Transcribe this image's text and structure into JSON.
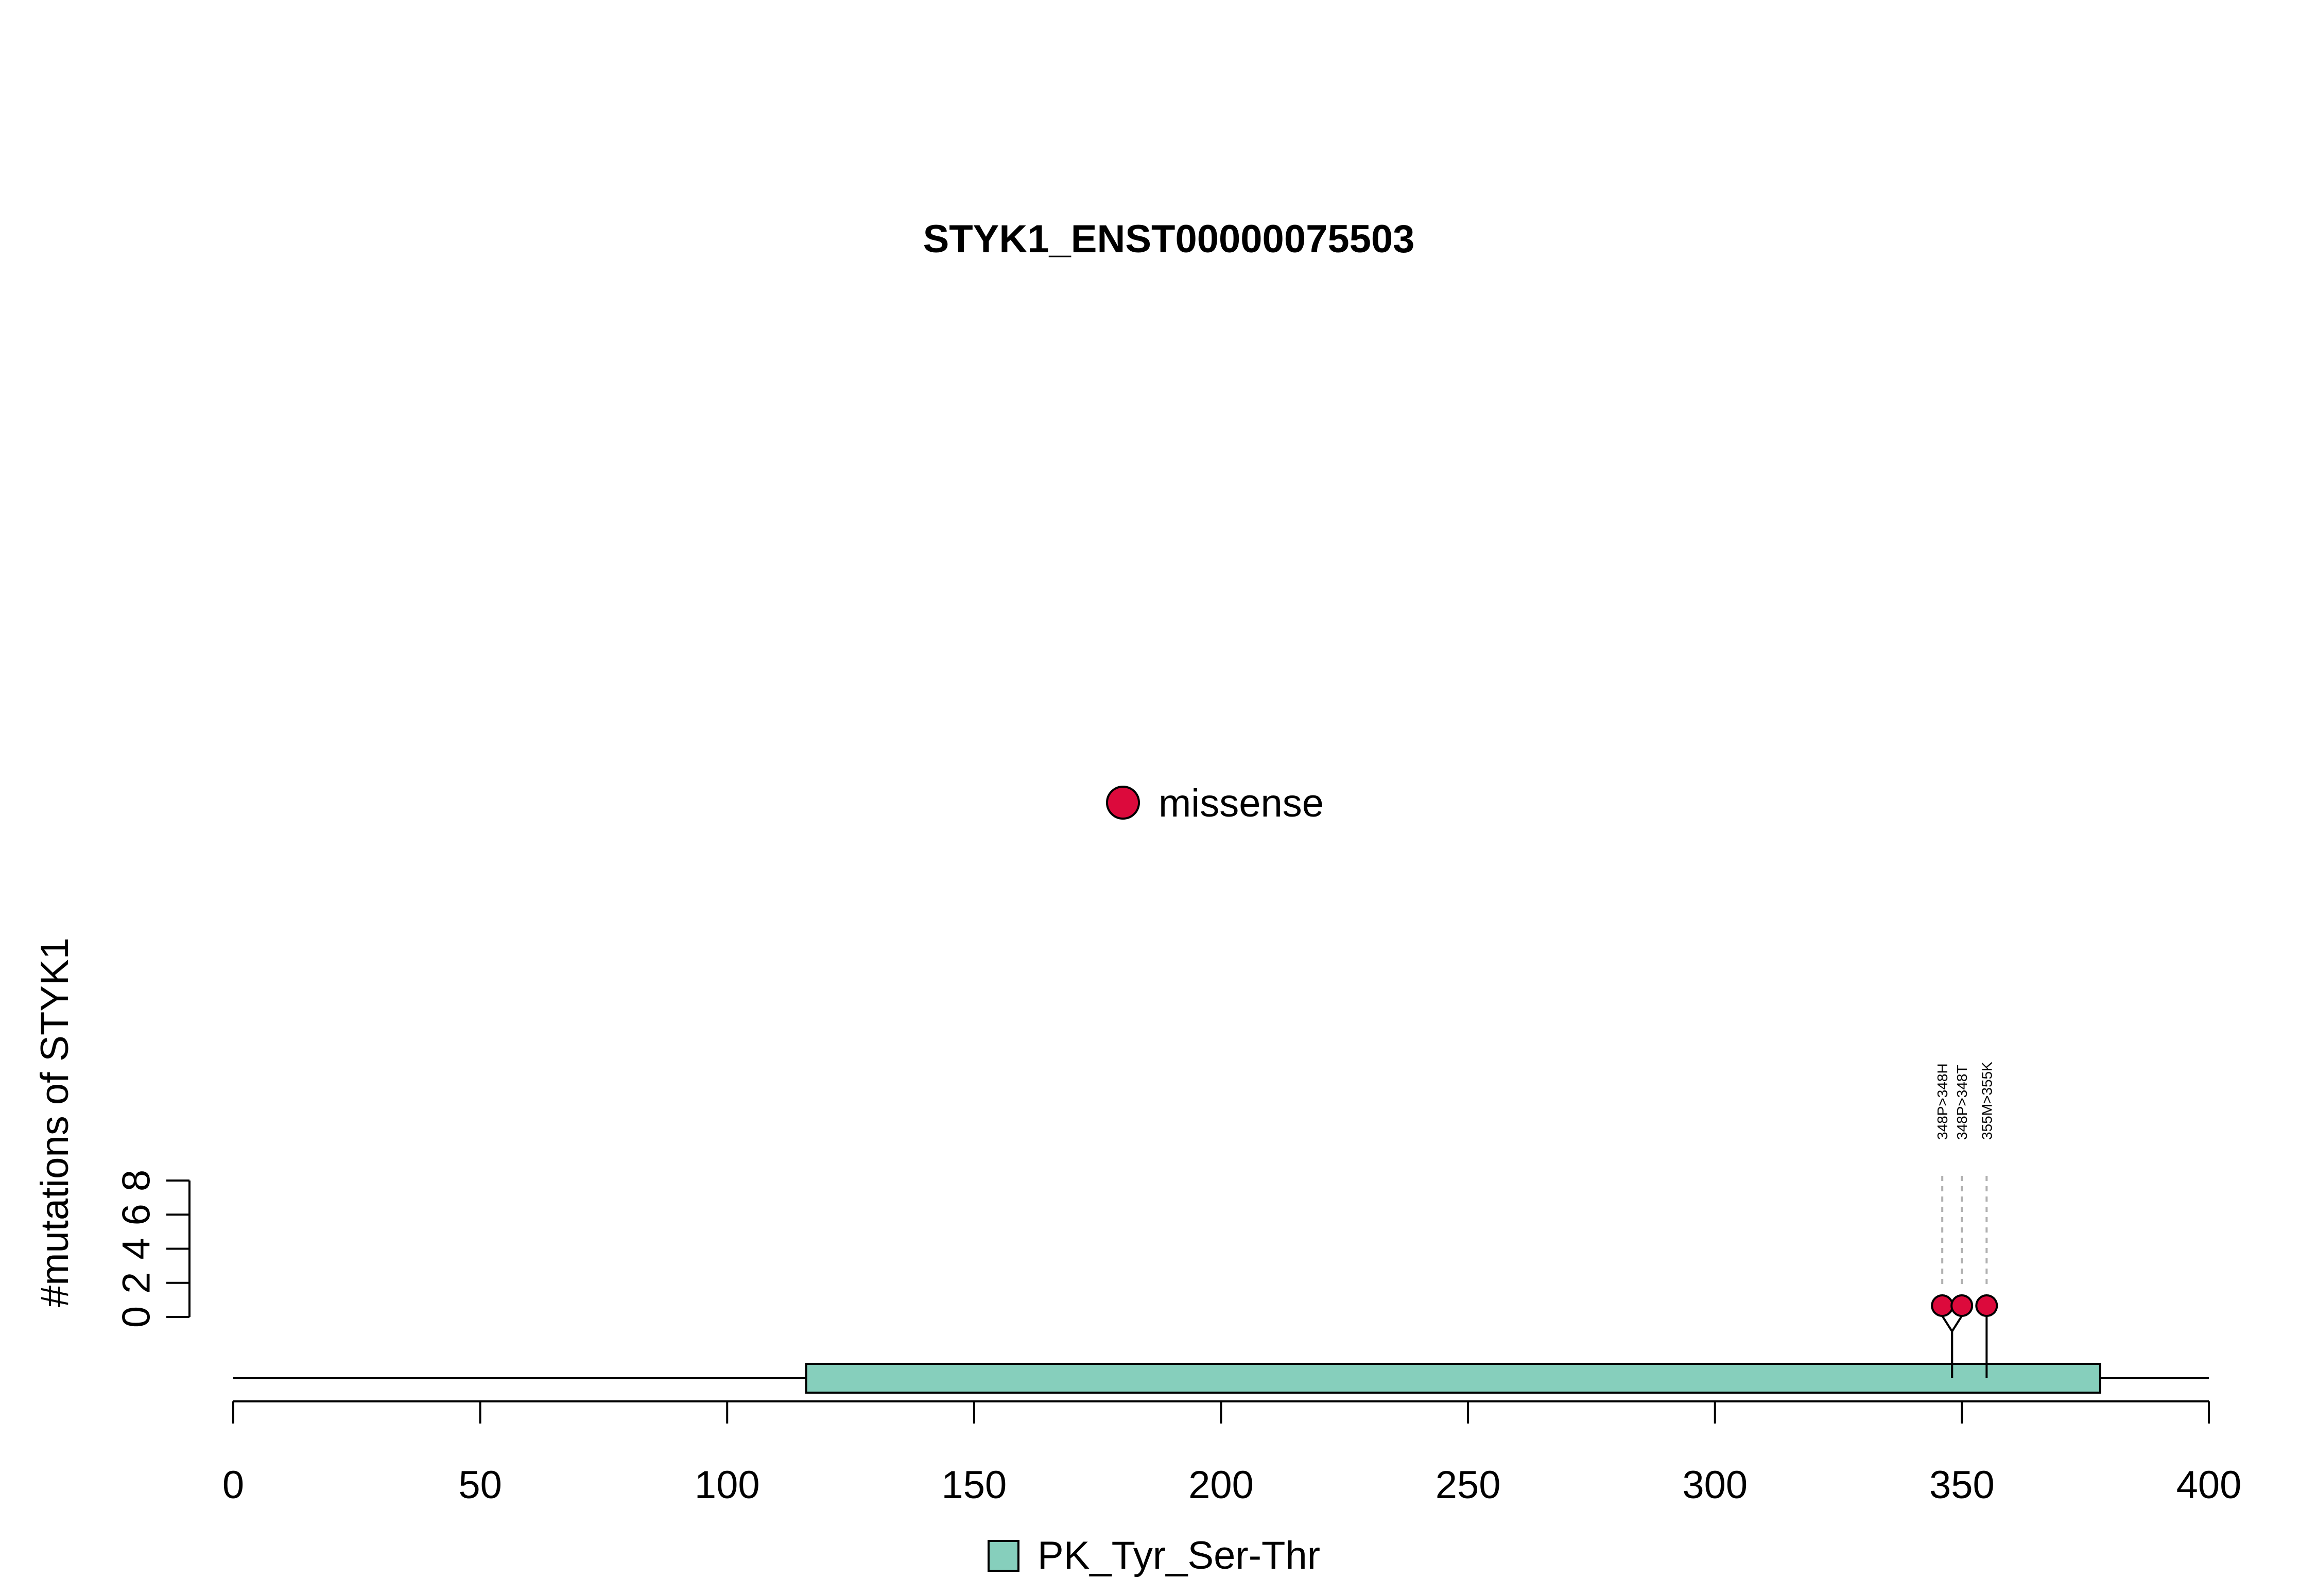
{
  "chart_data": {
    "type": "lollipop",
    "title": "STYK1_ENST00000075503",
    "ylabel": "#mutations of STYK1",
    "xlabel": "",
    "xlim": [
      0,
      400
    ],
    "x_ticks": [
      0,
      50,
      100,
      150,
      200,
      250,
      300,
      350,
      400
    ],
    "y_ticks": [
      0,
      2,
      4,
      6,
      8
    ],
    "ylim": [
      0,
      8
    ],
    "protein_length": 400,
    "domains": [
      {
        "name": "PK_Tyr_Ser-Thr",
        "start": 116,
        "end": 378,
        "color": "#86CFBC"
      }
    ],
    "mutation_types": [
      {
        "name": "missense",
        "color": "#DC0A3C"
      }
    ],
    "mutations": [
      {
        "label": "348P>348H",
        "position": 348,
        "count": 1,
        "type": "missense"
      },
      {
        "label": "348P>348T",
        "position": 348,
        "count": 1,
        "type": "missense"
      },
      {
        "label": "355M>355K",
        "position": 355,
        "count": 1,
        "type": "missense"
      }
    ],
    "legend": {
      "top": [
        "missense"
      ],
      "bottom": [
        "PK_Tyr_Ser-Thr"
      ]
    }
  }
}
